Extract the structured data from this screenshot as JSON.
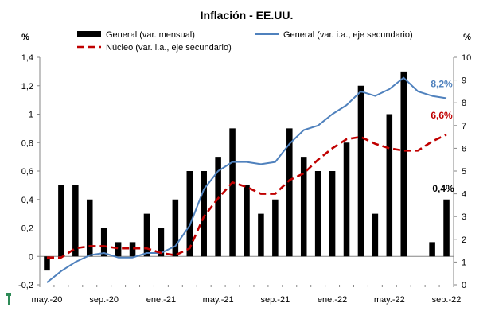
{
  "chart_data": {
    "type": "bar",
    "title": "Inflación - EE.UU.",
    "ylabel_left": "%",
    "ylabel_right": "%",
    "ylim_left": [
      -0.2,
      1.4
    ],
    "ylim_right": [
      0,
      10
    ],
    "yticks_left": [
      "-0,2",
      "0",
      "0,2",
      "0,4",
      "0,6",
      "0,8",
      "1",
      "1,2",
      "1,4"
    ],
    "yticks_right": [
      "0",
      "1",
      "2",
      "3",
      "4",
      "5",
      "6",
      "7",
      "8",
      "9",
      "10"
    ],
    "xtick_labels": [
      "may.-20",
      "sep.-20",
      "ene.-21",
      "may.-21",
      "sep.-21",
      "ene.-22",
      "may.-22",
      "sep.-22"
    ],
    "categories": [
      "may.-20",
      "jun.-20",
      "jul.-20",
      "ago.-20",
      "sep.-20",
      "oct.-20",
      "nov.-20",
      "dic.-20",
      "ene.-21",
      "feb.-21",
      "mar.-21",
      "abr.-21",
      "may.-21",
      "jun.-21",
      "jul.-21",
      "ago.-21",
      "sep.-21",
      "oct.-21",
      "nov.-21",
      "dic.-21",
      "ene.-22",
      "feb.-22",
      "mar.-22",
      "abr.-22",
      "may.-22",
      "jun.-22",
      "jul.-22",
      "ago.-22",
      "sep.-22"
    ],
    "series": [
      {
        "name": "General (var. mensual)",
        "type": "bar",
        "axis": "left",
        "color": "#000000",
        "values": [
          -0.1,
          0.5,
          0.5,
          0.4,
          0.2,
          0.1,
          0.1,
          0.3,
          0.2,
          0.4,
          0.6,
          0.6,
          0.7,
          0.9,
          0.5,
          0.3,
          0.4,
          0.9,
          0.7,
          0.6,
          0.6,
          0.8,
          1.2,
          0.3,
          1.0,
          1.3,
          0.0,
          0.1,
          0.4
        ]
      },
      {
        "name": "General (var. i.a., eje secundario)",
        "type": "line",
        "axis": "right",
        "color": "#4f81bd",
        "values": [
          0.1,
          0.6,
          1.0,
          1.3,
          1.4,
          1.2,
          1.2,
          1.4,
          1.4,
          1.7,
          2.6,
          4.2,
          5.0,
          5.4,
          5.4,
          5.3,
          5.4,
          6.2,
          6.8,
          7.0,
          7.5,
          7.9,
          8.5,
          8.3,
          8.6,
          9.1,
          8.5,
          8.3,
          8.2
        ]
      },
      {
        "name": "Núcleo (var. i.a., eje secundario)",
        "type": "line",
        "axis": "right",
        "color": "#c00000",
        "dashed": true,
        "values": [
          1.2,
          1.2,
          1.6,
          1.7,
          1.7,
          1.6,
          1.6,
          1.6,
          1.4,
          1.3,
          1.6,
          3.0,
          3.8,
          4.5,
          4.3,
          4.0,
          4.0,
          4.6,
          4.9,
          5.5,
          6.0,
          6.4,
          6.5,
          6.2,
          6.0,
          5.9,
          5.9,
          6.3,
          6.6
        ]
      }
    ],
    "annotations": [
      {
        "text": "8,2%",
        "color": "#4f81bd",
        "series": "General (var. i.a., eje secundario)"
      },
      {
        "text": "6,6%",
        "color": "#c00000",
        "series": "Núcleo (var. i.a., eje secundario)"
      },
      {
        "text": "0,4%",
        "color": "#000000",
        "series": "General (var. mensual)"
      }
    ],
    "grid": false,
    "legend": "top"
  }
}
